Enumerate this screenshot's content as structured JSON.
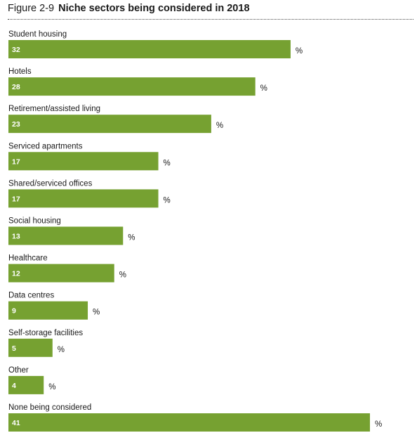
{
  "figure": {
    "number": "Figure 2-9",
    "title": "Niche sectors being considered in 2018"
  },
  "chart_data": {
    "type": "bar",
    "orientation": "horizontal",
    "title": "Niche sectors being considered in 2018",
    "unit": "%",
    "bar_color": "#76a131",
    "categories": [
      "Student housing",
      "Hotels",
      "Retirement/assisted living",
      "Serviced apartments",
      "Shared/serviced offices",
      "Social housing",
      "Healthcare",
      "Data centres",
      "Self-storage facilities",
      "Other",
      "None being considered"
    ],
    "values": [
      32,
      28,
      23,
      17,
      17,
      13,
      12,
      9,
      5,
      4,
      41
    ]
  }
}
